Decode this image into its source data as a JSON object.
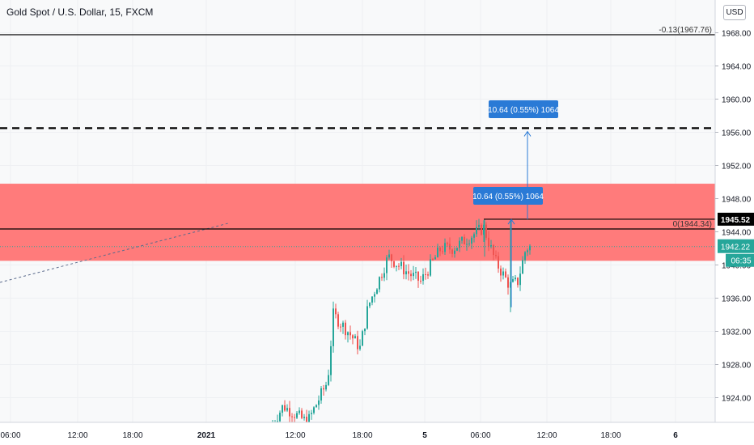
{
  "header": {
    "title": "Gold Spot / U.S. Dollar, 15, FXCM",
    "currency_button": "USD"
  },
  "colors": {
    "zone": "#ff7b7b",
    "up": "#26a69a",
    "down": "#ef5350",
    "measure": "#2a7ad6",
    "price_label": "#000000",
    "current_label": "#26a69a",
    "grid": "#eef0f3"
  },
  "chart_data": {
    "type": "candlestick",
    "symbol": "Gold Spot / U.S. Dollar",
    "interval": "15",
    "source": "FXCM",
    "currency": "USD",
    "y_axis": {
      "min": 1920,
      "max": 1970,
      "ticks": [
        1924.0,
        1928.0,
        1932.0,
        1936.0,
        1940.0,
        1944.0,
        1948.0,
        1952.0,
        1956.0,
        1960.0,
        1964.0,
        1968.0
      ]
    },
    "x_axis": {
      "ticks": [
        "06:00",
        "12:00",
        "18:00",
        "2021",
        "12:00",
        "18:00",
        "5",
        "06:00",
        "12:00",
        "18:00",
        "6"
      ]
    },
    "current_price": {
      "value": 1942.22,
      "label": "1942.22",
      "countdown": "06:35"
    },
    "highlight_price": {
      "value": 1945.52,
      "label": "1945.52"
    },
    "horizontal_lines": [
      {
        "value": 1967.76,
        "style": "solid",
        "label": "-0.13(1967.76)"
      },
      {
        "value": 1956.5,
        "style": "dashed"
      },
      {
        "value": 1944.34,
        "style": "solid",
        "label": "0(1944.34)"
      }
    ],
    "zone": {
      "from": 1940.5,
      "to": 1949.8
    },
    "measurements": [
      {
        "label": "10.64 (0.55%) 1064",
        "from": 1945.5,
        "to": 1956.1
      },
      {
        "label": "10.64 (0.55%) 1064",
        "from": 1934.9,
        "to": 1945.5
      }
    ],
    "grid": true
  }
}
